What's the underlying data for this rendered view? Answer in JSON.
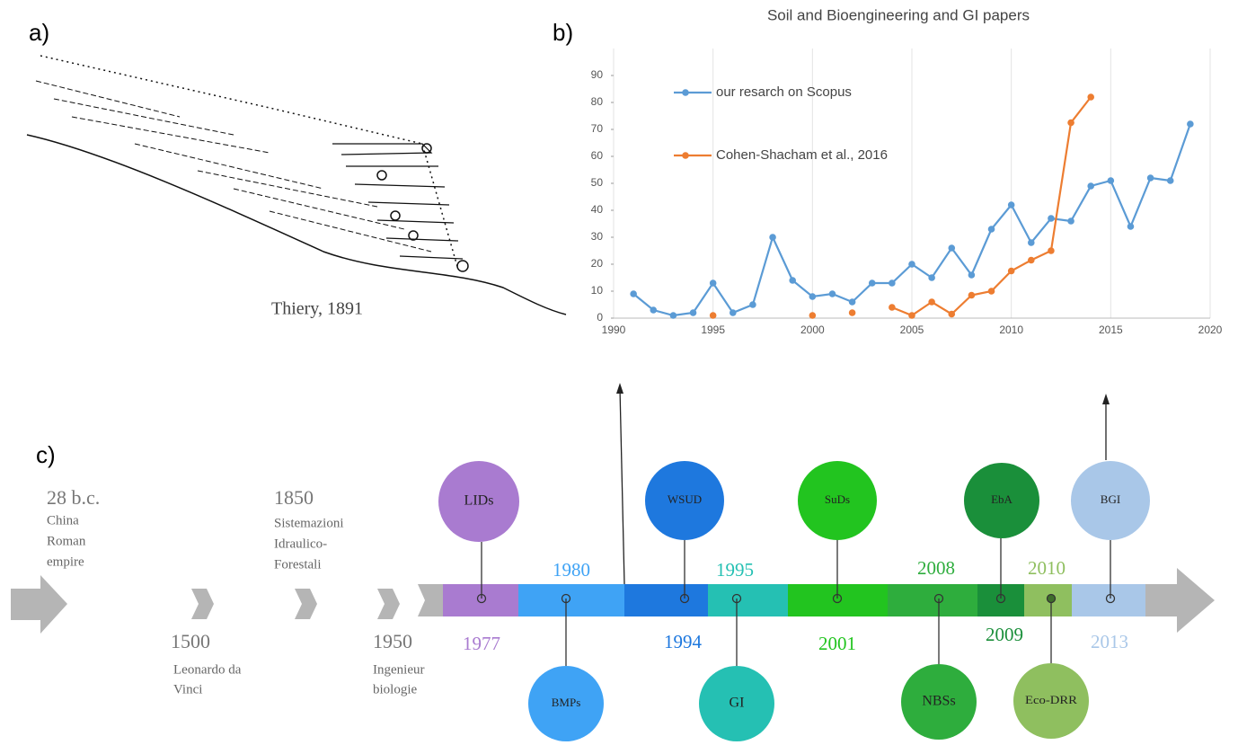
{
  "panels": {
    "a": "a)",
    "b": "b)",
    "c": "c)"
  },
  "drawing": {
    "caption": "Thiery, 1891"
  },
  "chart_data": {
    "type": "line",
    "title": "Soil and Bioengineering and GI papers",
    "x": [
      1991,
      1992,
      1993,
      1994,
      1995,
      1996,
      1997,
      1998,
      1999,
      2000,
      2001,
      2002,
      2003,
      2004,
      2005,
      2006,
      2007,
      2008,
      2009,
      2010,
      2011,
      2012,
      2013,
      2014,
      2015,
      2016,
      2017,
      2018,
      2019
    ],
    "series": [
      {
        "name": "our resarch on Scopus",
        "color": "#5b9bd5",
        "values": [
          9,
          3,
          1,
          2,
          13,
          2,
          5,
          30,
          14,
          8,
          9,
          6,
          13,
          13,
          20,
          15,
          26,
          16,
          33,
          42,
          28,
          37,
          36,
          49,
          51,
          34,
          52,
          51,
          72
        ]
      },
      {
        "name": "Cohen-Shacham et al., 2016",
        "color": "#ed7d31",
        "values": [
          null,
          null,
          null,
          null,
          1,
          null,
          null,
          null,
          null,
          1,
          null,
          2,
          null,
          4,
          1,
          6,
          1.5,
          8.5,
          10,
          17.5,
          21.5,
          25,
          72.5,
          82,
          null,
          null,
          null,
          null,
          null
        ]
      }
    ],
    "xlim": [
      1990,
      2020
    ],
    "xticks": [
      1990,
      1995,
      2000,
      2005,
      2010,
      2015,
      2020
    ],
    "ylim": [
      0,
      100
    ],
    "yticks": [
      0,
      10,
      20,
      30,
      40,
      50,
      60,
      70,
      80,
      90
    ],
    "grid": "x",
    "legend": "upper left"
  },
  "timeline": {
    "history": [
      {
        "year": "28 b.c.",
        "lines": [
          "China",
          "Roman",
          "empire"
        ]
      },
      {
        "year": "1500",
        "lines": [
          "Leonardo da",
          "Vinci"
        ]
      },
      {
        "year": "1850",
        "lines": [
          "Sistemazioni",
          "Idraulico-",
          "Forestali"
        ]
      },
      {
        "year": "1950",
        "lines": [
          "Ingenieur",
          "biologie"
        ]
      }
    ],
    "items": [
      {
        "label": "LIDs",
        "year": "1977",
        "color": "#a97bd0"
      },
      {
        "label": "BMPs",
        "year": "1980",
        "color": "#3fa3f5"
      },
      {
        "label": "WSUD",
        "year": "1994",
        "color": "#1e78de"
      },
      {
        "label": "GI",
        "year": "1995",
        "color": "#25c0b3"
      },
      {
        "label": "SuDs",
        "year": "2001",
        "color": "#22c41f"
      },
      {
        "label": "NBSs",
        "year": "2008",
        "color": "#2ead3d"
      },
      {
        "label": "EbA",
        "year": "2009",
        "color": "#1a8f3a"
      },
      {
        "label": "Eco-DRR",
        "year": "2010",
        "color": "#8fbf5f"
      },
      {
        "label": "BGI",
        "year": "2013",
        "color": "#a9c7e8"
      }
    ]
  }
}
